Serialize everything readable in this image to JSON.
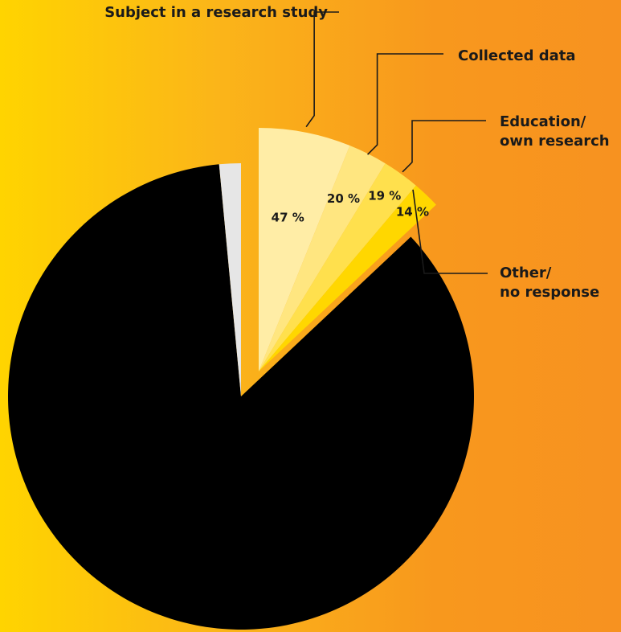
{
  "chart_data": {
    "type": "pie",
    "slices": [
      {
        "name": "",
        "value": 85.5,
        "color": "#000000"
      },
      {
        "name": "",
        "value": 1.5,
        "color": "#E6E6E6"
      }
    ],
    "exploded_breakdown": {
      "share_of_total": 13,
      "items": [
        {
          "name": "Subject in a research study",
          "value": 47,
          "label": "47 %",
          "color": "#FFEDA6"
        },
        {
          "name": "Collected data",
          "value": 20,
          "label": "20 %",
          "color": "#FFE680"
        },
        {
          "name": "Education/\nown research",
          "value": 19,
          "label": "19 %",
          "color": "#FFE04D"
        },
        {
          "name": "Other/\nno response",
          "value": 14,
          "label": "14 %",
          "color": "#FFD700"
        }
      ]
    },
    "legend": "none",
    "grid": false
  }
}
